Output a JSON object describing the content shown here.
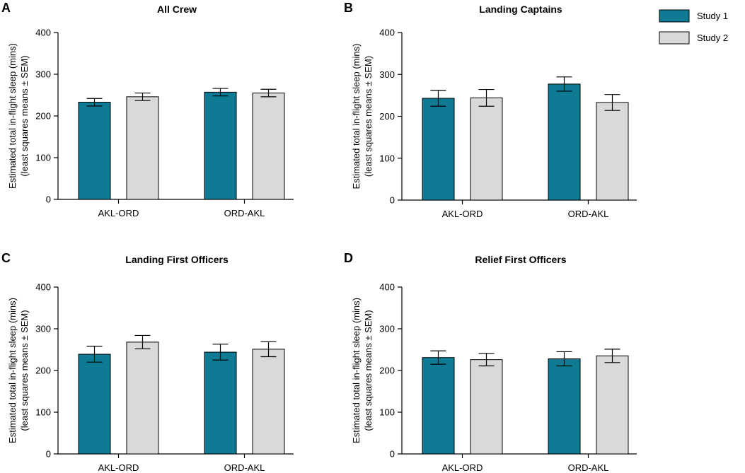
{
  "legend": {
    "entries": [
      {
        "name": "Study 1",
        "color": "#0e7a94"
      },
      {
        "name": "Study 2",
        "color": "#d9d9d9"
      }
    ]
  },
  "chart_data": [
    {
      "type": "bar",
      "panel": "A",
      "title": "All Crew",
      "ylabel": [
        "Estimated total in-flight sleep (mins)",
        "(least squares means ± SEM)"
      ],
      "ylim": [
        0,
        400
      ],
      "yticks": [
        0,
        100,
        200,
        300,
        400
      ],
      "categories": [
        "AKL-ORD",
        "ORD-AKL"
      ],
      "series": [
        {
          "name": "Study 1",
          "values": [
            233,
            257
          ],
          "sem": [
            9,
            9
          ]
        },
        {
          "name": "Study 2",
          "values": [
            246,
            255
          ],
          "sem": [
            9,
            9
          ]
        }
      ]
    },
    {
      "type": "bar",
      "panel": "B",
      "title": "Landing Captains",
      "ylabel": [
        "Estimated total in-flight sleep (mins)",
        "(least squares means ± SEM)"
      ],
      "ylim": [
        0,
        400
      ],
      "yticks": [
        0,
        100,
        200,
        300,
        400
      ],
      "categories": [
        "AKL-ORD",
        "ORD-AKL"
      ],
      "series": [
        {
          "name": "Study 1",
          "values": [
            243,
            277
          ],
          "sem": [
            19,
            17
          ]
        },
        {
          "name": "Study 2",
          "values": [
            244,
            233
          ],
          "sem": [
            20,
            19
          ]
        }
      ]
    },
    {
      "type": "bar",
      "panel": "C",
      "title": "Landing First Officers",
      "ylabel": [
        "Estimated total in-flight sleep (mins)",
        "(least squares means ± SEM)"
      ],
      "ylim": [
        0,
        400
      ],
      "yticks": [
        0,
        100,
        200,
        300,
        400
      ],
      "categories": [
        "AKL-ORD",
        "ORD-AKL"
      ],
      "series": [
        {
          "name": "Study 1",
          "values": [
            239,
            244
          ],
          "sem": [
            19,
            19
          ]
        },
        {
          "name": "Study 2",
          "values": [
            268,
            251
          ],
          "sem": [
            16,
            18
          ]
        }
      ]
    },
    {
      "type": "bar",
      "panel": "D",
      "title": "Relief First Officers",
      "ylabel": [
        "Estimated total in-flight sleep (mins)",
        "(least squares means ± SEM)"
      ],
      "ylim": [
        0,
        400
      ],
      "yticks": [
        0,
        100,
        200,
        300,
        400
      ],
      "categories": [
        "AKL-ORD",
        "ORD-AKL"
      ],
      "series": [
        {
          "name": "Study 1",
          "values": [
            231,
            228
          ],
          "sem": [
            16,
            17
          ]
        },
        {
          "name": "Study 2",
          "values": [
            226,
            235
          ],
          "sem": [
            15,
            16
          ]
        }
      ]
    }
  ]
}
